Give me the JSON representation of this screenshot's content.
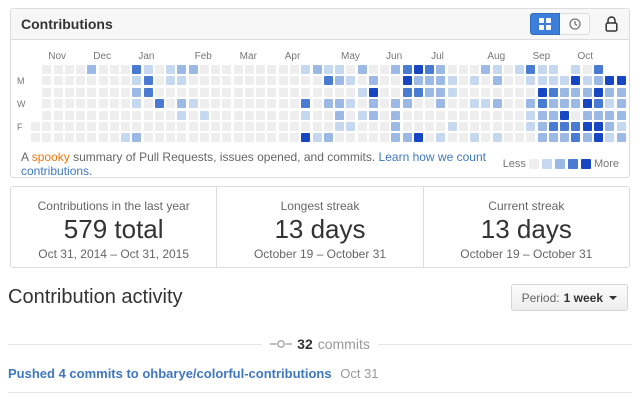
{
  "panel": {
    "title": "Contributions",
    "footer": {
      "prefix": "A",
      "spooky": "spooky",
      "rest": "summary of Pull Requests, issues opened, and commits.",
      "link": "Learn how we count contributions.",
      "less": "Less",
      "more": "More"
    }
  },
  "chart_data": {
    "type": "heatmap",
    "title": "Contributions calendar (last year, weeks Nov-Oct, rows Sun-Sat)",
    "months": [
      {
        "label": "Nov",
        "col": 1
      },
      {
        "label": "Dec",
        "col": 5
      },
      {
        "label": "Jan",
        "col": 9
      },
      {
        "label": "Feb",
        "col": 14
      },
      {
        "label": "Mar",
        "col": 18
      },
      {
        "label": "Apr",
        "col": 22
      },
      {
        "label": "May",
        "col": 27
      },
      {
        "label": "Jun",
        "col": 31
      },
      {
        "label": "Jul",
        "col": 35
      },
      {
        "label": "Aug",
        "col": 40
      },
      {
        "label": "Sep",
        "col": 44
      },
      {
        "label": "Oct",
        "col": 48
      }
    ],
    "day_labels": [
      {
        "label": "M",
        "row": 1
      },
      {
        "label": "W",
        "row": 3
      },
      {
        "label": "F",
        "row": 5
      }
    ],
    "level_colors": [
      "#eeeeee",
      "#c6d7f0",
      "#9cb8e4",
      "#4a7bd2",
      "#1746c2"
    ],
    "legend_levels": [
      0,
      1,
      2,
      3,
      4
    ],
    "grid_rows": [
      "x0000200031012200000000012110200234320002101311 103",
      "x0000000013011000000000000321020042221010200111141244",
      "x0000000023000000000000000000140033221000000043222422",
      "x0000000010302100000000030221020220020011200232224312",
      "x0000000000001010000000010020120200000000000122402222",
      "00000000000000000000000000011000200001000000123334421",
      "00000000120000000000000041200000224010010100022232412"
    ],
    "grid_note": "digits 0-4 = contribution intensity per day cell, x = cell outside range"
  },
  "stats": [
    {
      "label": "Contributions in the last year",
      "value": "579 total",
      "range": "Oct 31, 2014 – Oct 31, 2015"
    },
    {
      "label": "Longest streak",
      "value": "13 days",
      "range": "October 19 – October 31"
    },
    {
      "label": "Current streak",
      "value": "13 days",
      "range": "October 19 – October 31"
    }
  ],
  "activity": {
    "heading": "Contribution activity",
    "period_label": "Period:",
    "period_value": "1 week",
    "commits_count": "32",
    "commits_label": "commits",
    "event": {
      "text": "Pushed 4 commits to ohbarye/colorful-contributions",
      "date": "Oct 31"
    }
  },
  "colors": {
    "link_blue": "#4078c0",
    "spooky_orange": "#ee7711",
    "selected_button_blue": "#3d7edb",
    "panel_border": "#dddddd",
    "header_background": "#f7f7f7"
  }
}
